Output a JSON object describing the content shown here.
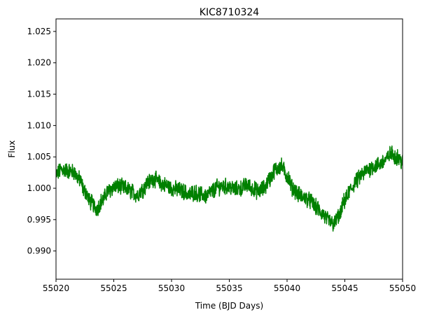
{
  "chart_data": {
    "type": "line",
    "title": "KIC8710324",
    "xlabel": "Time (BJD Days)",
    "ylabel": "Flux",
    "xlim": [
      55020,
      55050
    ],
    "ylim": [
      0.9855,
      1.027
    ],
    "xticks": [
      55020,
      55025,
      55030,
      55035,
      55040,
      55045,
      55050
    ],
    "yticks": [
      0.99,
      0.995,
      1.0,
      1.005,
      1.01,
      1.015,
      1.02,
      1.025
    ],
    "xtick_labels": [
      "55020",
      "55025",
      "55030",
      "55035",
      "55040",
      "55045",
      "55050"
    ],
    "ytick_labels": [
      "0.990",
      "0.995",
      "1.000",
      "1.005",
      "1.010",
      "1.015",
      "1.020",
      "1.025"
    ],
    "grid": false,
    "series": [
      {
        "color": "#008000",
        "points": [
          [
            55020.0,
            1.0022
          ],
          [
            55020.5,
            1.003
          ],
          [
            55021.0,
            1.0028
          ],
          [
            55021.5,
            1.0026
          ],
          [
            55022.0,
            1.0015
          ],
          [
            55022.5,
            0.9995
          ],
          [
            55023.0,
            0.9978
          ],
          [
            55023.5,
            0.9968
          ],
          [
            55024.0,
            0.998
          ],
          [
            55024.5,
            0.9995
          ],
          [
            55025.0,
            1.0002
          ],
          [
            55025.5,
            1.0003
          ],
          [
            55026.0,
            1.0
          ],
          [
            55026.5,
            0.9995
          ],
          [
            55027.0,
            0.999
          ],
          [
            55027.5,
            0.9998
          ],
          [
            55028.0,
            1.001
          ],
          [
            55028.5,
            1.0015
          ],
          [
            55029.0,
            1.0008
          ],
          [
            55029.5,
            1.0005
          ],
          [
            55030.0,
            1.0
          ],
          [
            55030.5,
            0.9998
          ],
          [
            55031.0,
            0.9995
          ],
          [
            55031.5,
            0.999
          ],
          [
            55032.0,
            0.9993
          ],
          [
            55032.5,
            0.999
          ],
          [
            55033.0,
            0.9988
          ],
          [
            55033.5,
            0.9995
          ],
          [
            55034.0,
            1.0002
          ],
          [
            55034.5,
            1.0003
          ],
          [
            55035.0,
            1.0002
          ],
          [
            55035.5,
            0.9998
          ],
          [
            55036.0,
            1.0
          ],
          [
            55036.5,
            1.0005
          ],
          [
            55037.0,
            1.0
          ],
          [
            55037.5,
            0.9995
          ],
          [
            55038.0,
            1.0
          ],
          [
            55038.5,
            1.0015
          ],
          [
            55039.0,
            1.003
          ],
          [
            55039.5,
            1.0035
          ],
          [
            55040.0,
            1.002
          ],
          [
            55040.5,
            1.0
          ],
          [
            55041.0,
            0.999
          ],
          [
            55041.5,
            0.9985
          ],
          [
            55042.0,
            0.998
          ],
          [
            55042.5,
            0.997
          ],
          [
            55043.0,
            0.996
          ],
          [
            55043.5,
            0.995
          ],
          [
            55044.0,
            0.9943
          ],
          [
            55044.5,
            0.9955
          ],
          [
            55045.0,
            0.998
          ],
          [
            55045.5,
            0.9998
          ],
          [
            55046.0,
            1.0012
          ],
          [
            55046.5,
            1.0022
          ],
          [
            55047.0,
            1.003
          ],
          [
            55047.5,
            1.0035
          ],
          [
            55048.0,
            1.0038
          ],
          [
            55048.5,
            1.0045
          ],
          [
            55049.0,
            1.0055
          ],
          [
            55049.5,
            1.005
          ],
          [
            55050.0,
            1.0042
          ]
        ]
      }
    ]
  }
}
